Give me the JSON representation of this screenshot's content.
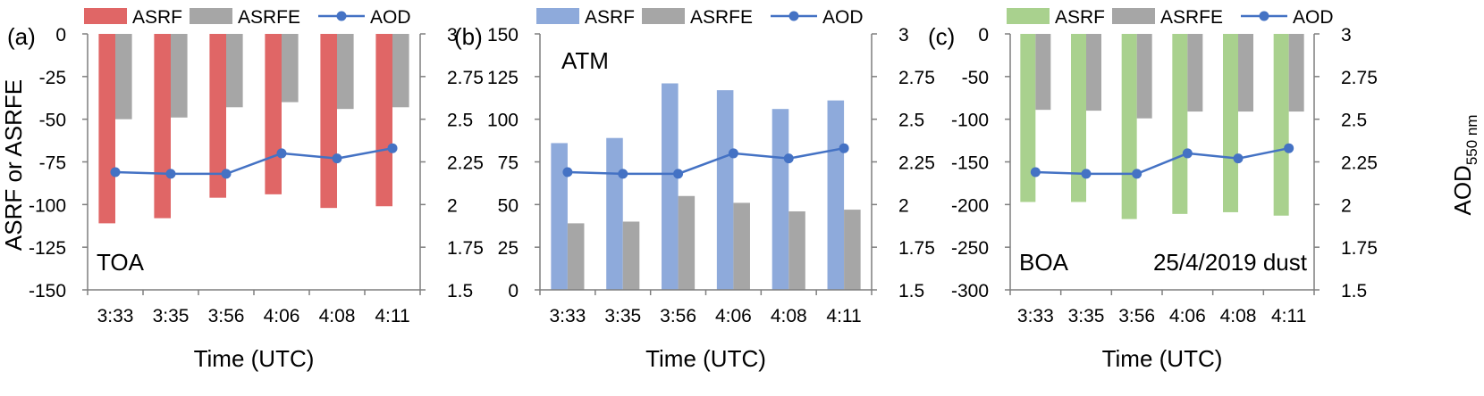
{
  "shared": {
    "x_label": "Time (UTC)",
    "left_axis_label": "ASRF or ASRFE",
    "right_axis_label_main": "AOD",
    "right_axis_label_sub": "550 nm",
    "legend": [
      "ASRF",
      "ASRFE",
      "AOD"
    ]
  },
  "chart_data": [
    {
      "type": "bar",
      "panel": "(a)",
      "annotation": "TOA",
      "categories": [
        "3:33",
        "3:35",
        "3:56",
        "4:06",
        "4:08",
        "4:11"
      ],
      "series": [
        {
          "name": "ASRF",
          "values": [
            -111,
            -108,
            -96,
            -94,
            -102,
            -101
          ],
          "color": "#e06666"
        },
        {
          "name": "ASRFE",
          "values": [
            -50,
            -49,
            -43,
            -40,
            -44,
            -43
          ],
          "color": "#a6a6a6"
        },
        {
          "name": "AOD",
          "axis": "right",
          "type": "line",
          "values": [
            2.19,
            2.18,
            2.18,
            2.3,
            2.27,
            2.33
          ],
          "color": "#4472c4"
        }
      ],
      "ylim": [
        -150,
        0
      ],
      "yticks": [
        0,
        -25,
        -50,
        -75,
        -100,
        -125,
        -150
      ],
      "y2lim": [
        1.5,
        3
      ],
      "y2ticks": [
        "3",
        "2.75",
        "2.5",
        "2.25",
        "2",
        "1.75",
        "1.5"
      ],
      "legend_position": "top"
    },
    {
      "type": "bar",
      "panel": "(b)",
      "annotation": "ATM",
      "categories": [
        "3:33",
        "3:35",
        "3:56",
        "4:06",
        "4:08",
        "4:11"
      ],
      "series": [
        {
          "name": "ASRF",
          "values": [
            86,
            89,
            121,
            117,
            106,
            111
          ],
          "color": "#8eaadb"
        },
        {
          "name": "ASRFE",
          "values": [
            39,
            40,
            55,
            51,
            46,
            47
          ],
          "color": "#a6a6a6"
        },
        {
          "name": "AOD",
          "axis": "right",
          "type": "line",
          "values": [
            2.19,
            2.18,
            2.18,
            2.3,
            2.27,
            2.33
          ],
          "color": "#4472c4"
        }
      ],
      "ylim": [
        0,
        150
      ],
      "yticks": [
        150,
        125,
        100,
        75,
        50,
        25,
        0
      ],
      "y2lim": [
        1.5,
        3
      ],
      "y2ticks": [
        "3",
        "2.75",
        "2.5",
        "2.25",
        "2",
        "1.75",
        "1.5"
      ],
      "legend_position": "top"
    },
    {
      "type": "bar",
      "panel": "(c)",
      "annotation": "BOA",
      "annotation_right": "25/4/2019  dust",
      "categories": [
        "3:33",
        "3:35",
        "3:56",
        "4:06",
        "4:08",
        "4:11"
      ],
      "series": [
        {
          "name": "ASRF",
          "values": [
            -197,
            -197,
            -217,
            -211,
            -209,
            -213
          ],
          "color": "#a9d18e"
        },
        {
          "name": "ASRFE",
          "values": [
            -89,
            -90,
            -99,
            -91,
            -91,
            -91
          ],
          "color": "#a6a6a6"
        },
        {
          "name": "AOD",
          "axis": "right",
          "type": "line",
          "values": [
            2.19,
            2.18,
            2.18,
            2.3,
            2.27,
            2.33
          ],
          "color": "#4472c4"
        }
      ],
      "ylim": [
        -300,
        0
      ],
      "yticks": [
        0,
        -50,
        -100,
        -150,
        -200,
        -250,
        -300
      ],
      "y2lim": [
        1.5,
        3
      ],
      "y2ticks": [
        "3",
        "2.75",
        "2.5",
        "2.25",
        "2",
        "1.75",
        "1.5"
      ],
      "legend_position": "top"
    }
  ]
}
